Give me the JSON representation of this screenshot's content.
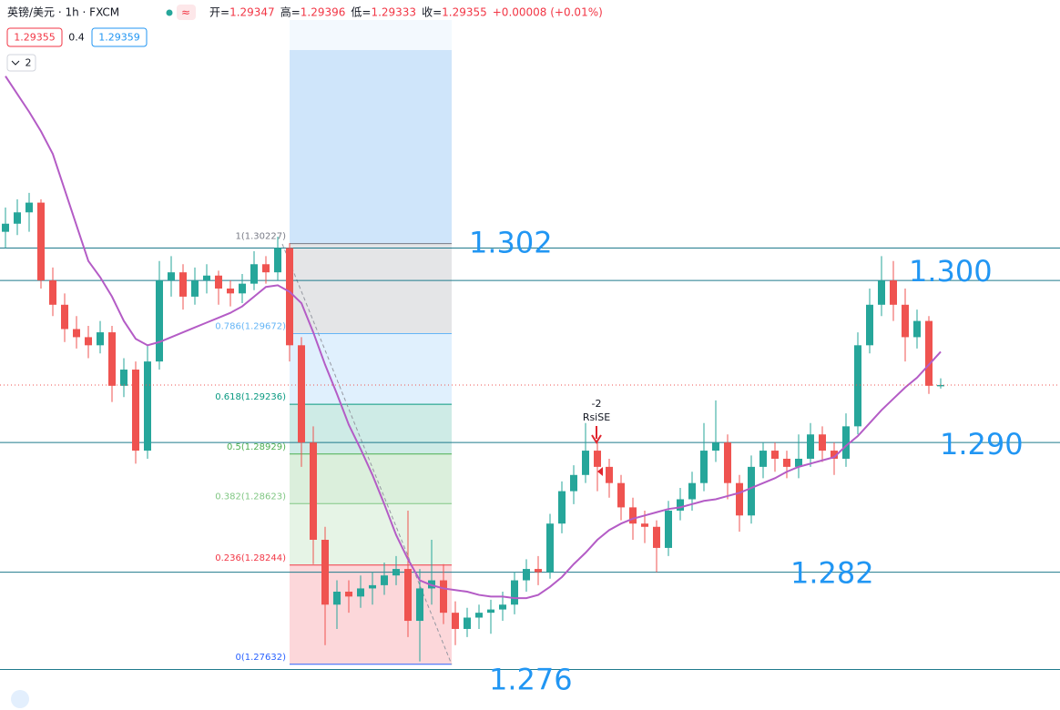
{
  "header": {
    "title": "英镑/美元 · 1h · FXCM",
    "ohlc_labels": [
      "开=",
      "高=",
      "低=",
      "收="
    ],
    "ohlc_values": [
      "1.29347",
      "1.29396",
      "1.29333",
      "1.29355"
    ],
    "change": "+0.00008 (+0.01%)",
    "bid": "1.29355",
    "spread": "0.4",
    "ask": "1.29359",
    "indicators": "2"
  },
  "chart_data": {
    "type": "candlestick",
    "up_color": "#26a69a",
    "down_color": "#ef5350",
    "ylim": [
      1.2735,
      1.3173
    ],
    "candles": [
      [
        1.303,
        1.3045,
        1.302,
        1.3035
      ],
      [
        1.3035,
        1.305,
        1.3028,
        1.3042
      ],
      [
        1.3042,
        1.3054,
        1.303,
        1.3048
      ],
      [
        1.3048,
        1.305,
        1.2995,
        1.3
      ],
      [
        1.3,
        1.3008,
        1.2978,
        1.2985
      ],
      [
        1.2985,
        1.2992,
        1.2962,
        1.297
      ],
      [
        1.297,
        1.2978,
        1.2958,
        1.2965
      ],
      [
        1.2965,
        1.2972,
        1.2952,
        1.296
      ],
      [
        1.296,
        1.2975,
        1.2955,
        1.2968
      ],
      [
        1.2968,
        1.2972,
        1.2925,
        1.2935
      ],
      [
        1.2935,
        1.2952,
        1.2928,
        1.2945
      ],
      [
        1.2945,
        1.295,
        1.2887,
        1.2895
      ],
      [
        1.2895,
        1.296,
        1.289,
        1.295
      ],
      [
        1.295,
        1.3012,
        1.2945,
        1.3
      ],
      [
        1.3,
        1.3015,
        1.299,
        1.3005
      ],
      [
        1.3005,
        1.301,
        1.2982,
        1.299
      ],
      [
        1.299,
        1.3008,
        1.2985,
        1.3
      ],
      [
        1.3,
        1.301,
        1.2992,
        1.3003
      ],
      [
        1.3003,
        1.3006,
        1.2985,
        1.2995
      ],
      [
        1.2995,
        1.3,
        1.2984,
        1.2992
      ],
      [
        1.2992,
        1.3004,
        1.2986,
        1.2998
      ],
      [
        1.2998,
        1.3018,
        1.2994,
        1.301
      ],
      [
        1.301,
        1.3015,
        1.2998,
        1.3005
      ],
      [
        1.3005,
        1.3027,
        1.3,
        1.302
      ],
      [
        1.302,
        1.3023,
        1.295,
        1.296
      ],
      [
        1.296,
        1.2965,
        1.2885,
        1.29
      ],
      [
        1.29,
        1.291,
        1.2825,
        1.284
      ],
      [
        1.284,
        1.2848,
        1.2775,
        1.28
      ],
      [
        1.28,
        1.2815,
        1.2785,
        1.2808
      ],
      [
        1.2808,
        1.2815,
        1.2795,
        1.2805
      ],
      [
        1.2805,
        1.2818,
        1.2798,
        1.281
      ],
      [
        1.281,
        1.282,
        1.28,
        1.2812
      ],
      [
        1.2812,
        1.2826,
        1.2806,
        1.2818
      ],
      [
        1.2818,
        1.283,
        1.2812,
        1.2822
      ],
      [
        1.2822,
        1.2858,
        1.278,
        1.279
      ],
      [
        1.279,
        1.2822,
        1.2765,
        1.281
      ],
      [
        1.281,
        1.284,
        1.28,
        1.2815
      ],
      [
        1.2815,
        1.2825,
        1.2788,
        1.2795
      ],
      [
        1.2795,
        1.2802,
        1.2775,
        1.2785
      ],
      [
        1.2785,
        1.2798,
        1.278,
        1.2792
      ],
      [
        1.2792,
        1.28,
        1.2785,
        1.2795
      ],
      [
        1.2795,
        1.2803,
        1.2782,
        1.2797
      ],
      [
        1.2797,
        1.2808,
        1.279,
        1.28
      ],
      [
        1.28,
        1.282,
        1.2794,
        1.2815
      ],
      [
        1.2815,
        1.2828,
        1.2808,
        1.2822
      ],
      [
        1.2822,
        1.283,
        1.2812,
        1.282
      ],
      [
        1.282,
        1.2856,
        1.2816,
        1.285
      ],
      [
        1.285,
        1.2876,
        1.2844,
        1.287
      ],
      [
        1.287,
        1.2886,
        1.2862,
        1.288
      ],
      [
        1.288,
        1.2912,
        1.2875,
        1.2895
      ],
      [
        1.2895,
        1.29,
        1.287,
        1.2885
      ],
      [
        1.2885,
        1.289,
        1.2866,
        1.2875
      ],
      [
        1.2875,
        1.288,
        1.2852,
        1.286
      ],
      [
        1.286,
        1.2866,
        1.284,
        1.285
      ],
      [
        1.285,
        1.2858,
        1.2838,
        1.2848
      ],
      [
        1.2848,
        1.2852,
        1.282,
        1.2835
      ],
      [
        1.2835,
        1.2864,
        1.283,
        1.2858
      ],
      [
        1.2858,
        1.2872,
        1.2852,
        1.2865
      ],
      [
        1.2865,
        1.2882,
        1.2858,
        1.2875
      ],
      [
        1.2875,
        1.2912,
        1.287,
        1.2895
      ],
      [
        1.2895,
        1.2926,
        1.2888,
        1.29
      ],
      [
        1.29,
        1.2905,
        1.2865,
        1.2875
      ],
      [
        1.2875,
        1.288,
        1.2845,
        1.2855
      ],
      [
        1.2855,
        1.2892,
        1.285,
        1.2885
      ],
      [
        1.2885,
        1.29,
        1.2878,
        1.2895
      ],
      [
        1.2895,
        1.29,
        1.2882,
        1.289
      ],
      [
        1.289,
        1.2895,
        1.2878,
        1.2885
      ],
      [
        1.2885,
        1.2905,
        1.2878,
        1.289
      ],
      [
        1.289,
        1.2912,
        1.2885,
        1.2905
      ],
      [
        1.2905,
        1.291,
        1.2888,
        1.2895
      ],
      [
        1.2895,
        1.29,
        1.288,
        1.289
      ],
      [
        1.289,
        1.2918,
        1.2885,
        1.291
      ],
      [
        1.291,
        1.2968,
        1.2905,
        1.296
      ],
      [
        1.296,
        1.2995,
        1.2955,
        1.2985
      ],
      [
        1.2985,
        1.3015,
        1.2978,
        1.3
      ],
      [
        1.3,
        1.3012,
        1.2975,
        1.2985
      ],
      [
        1.2985,
        1.2995,
        1.295,
        1.2965
      ],
      [
        1.2965,
        1.2982,
        1.2958,
        1.2975
      ],
      [
        1.2975,
        1.2978,
        1.293,
        1.2935
      ],
      [
        1.29347,
        1.29396,
        1.29333,
        1.29355
      ]
    ],
    "ma": {
      "color": "#b45cc6",
      "values": [
        1.3126,
        1.3115,
        1.3104,
        1.3092,
        1.3078,
        1.3056,
        1.3034,
        1.3012,
        1.3002,
        1.299,
        1.2975,
        1.2964,
        1.296,
        1.2962,
        1.2965,
        1.2968,
        1.2971,
        1.2974,
        1.2977,
        1.298,
        1.2984,
        1.299,
        1.2996,
        1.2997,
        1.2993,
        1.2986,
        1.2968,
        1.2948,
        1.293,
        1.2911,
        1.2896,
        1.288,
        1.2862,
        1.2843,
        1.2828,
        1.2815,
        1.2812,
        1.281,
        1.2809,
        1.2808,
        1.2806,
        1.2805,
        1.2805,
        1.2804,
        1.2804,
        1.2806,
        1.2811,
        1.2817,
        1.2825,
        1.2832,
        1.284,
        1.2846,
        1.285,
        1.2853,
        1.2855,
        1.2857,
        1.2859,
        1.286,
        1.2862,
        1.2864,
        1.2865,
        1.2867,
        1.2869,
        1.2872,
        1.2875,
        1.2878,
        1.2882,
        1.2885,
        1.2887,
        1.2889,
        1.2891,
        1.2898,
        1.2904,
        1.2912,
        1.292,
        1.2927,
        1.2934,
        1.294,
        1.2948,
        1.2956
      ]
    },
    "fib": [
      {
        "price": 1.30227,
        "label": "1(1.30227)",
        "color": "#787b86"
      },
      {
        "price": 1.29672,
        "label": "0.786(1.29672)",
        "color": "#64b5f6"
      },
      {
        "price": 1.29236,
        "label": "0.618(1.29236)",
        "color": "#089981"
      },
      {
        "price": 1.28929,
        "label": "0.5(1.28929)",
        "color": "#4caf50"
      },
      {
        "price": 1.28623,
        "label": "0.382(1.28623)",
        "color": "#81c784"
      },
      {
        "price": 1.28244,
        "label": "0.236(1.28244)",
        "color": "#f23645"
      },
      {
        "price": 1.27632,
        "label": "0(1.27632)",
        "color": "#2962ff"
      }
    ],
    "levels": [
      1.302,
      {
        "value": 1.3,
        "label": "1.300"
      },
      {
        "value": 1.29,
        "label": "1.290"
      },
      1.282,
      1.276
    ],
    "level_color": "#1f7a8c",
    "level_label_color": "#2196f3",
    "signal_labels": [
      "-2",
      "RsiSE"
    ]
  }
}
